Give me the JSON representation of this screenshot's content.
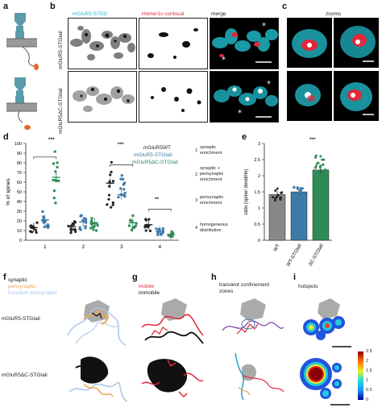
{
  "panels": {
    "a": "a",
    "b": "b",
    "c": "c",
    "d": "d",
    "e": "e",
    "f": "f",
    "g": "g",
    "h": "h",
    "i": "i"
  },
  "panel_b": {
    "col_sted": "mGluR5:STED",
    "col_homer": "Homer1c confocal",
    "col_merge": "merge",
    "row1": "mGluR5-STGtail",
    "row2": "mGluR5ΔC-STGtail"
  },
  "panel_c": {
    "title": "zooms"
  },
  "panel_d": {
    "sig1": "***",
    "sig2": "***",
    "sig3": "**",
    "legend": [
      "mGluR5WT",
      "mGluR5-STGtail",
      "mGluR5ΔC-STGtail"
    ],
    "categories_text": [
      {
        "num": "1",
        "text": "synaptic\nenrichment"
      },
      {
        "num": "2",
        "text": "synaptic +\nperisynaptic\nenrichment"
      },
      {
        "num": "3",
        "text": "perisynaptic\nenrichment"
      },
      {
        "num": "4",
        "text": "homogeneous\ndistribution"
      }
    ]
  },
  "panel_e": {
    "sig": "***"
  },
  "panel_f": {
    "legend_synaptic": "synaptic",
    "legend_perisynaptic": "perisynaptic",
    "legend_transient": "transient perisynaptic",
    "row1": "mGluR5-STGtail",
    "row2": "mGluR5ΔC-STGtail"
  },
  "panel_g": {
    "legend_mobile": "mobile",
    "legend_immobile": "immobile"
  },
  "panel_h": {
    "title": "transient confinement\nzones"
  },
  "panel_i": {
    "title": "hotspots",
    "colorbar_ticks": [
      "2.5",
      "2",
      "1.5",
      "1",
      "0.5",
      "0"
    ]
  },
  "colors": {
    "wt": "#222222",
    "stg": "#3d7aa8",
    "dc": "#2e8b57",
    "cyan": "#22d3d3",
    "red_homer": "#e0283a",
    "synaptic": "#111111",
    "perisynaptic": "#e8a857",
    "transient": "#a9c6e8",
    "mobile": "#e0283a",
    "immobile": "#111111",
    "tcz": "#7a3aa8"
  },
  "chart_data": [
    {
      "type": "scatter",
      "title": "",
      "xlabel": "",
      "ylabel": "% of spines",
      "ylim": [
        0,
        100
      ],
      "yticks": [
        0,
        10,
        20,
        30,
        40,
        50,
        60,
        70,
        80,
        90,
        100
      ],
      "categories": [
        "1",
        "2",
        "3",
        "4"
      ],
      "series": [
        {
          "name": "mGluR5WT",
          "means": [
            13,
            14,
            59,
            16
          ]
        },
        {
          "name": "mGluR5-STGtail",
          "means": [
            21,
            19,
            47,
            9
          ]
        },
        {
          "name": "mGluR5ΔC-STGtail",
          "means": [
            65,
            18,
            18,
            6
          ]
        }
      ],
      "legend": "right"
    },
    {
      "type": "bar",
      "title": "",
      "ylabel": "ratio (spine/ dendrite)",
      "ylim": [
        0,
        3
      ],
      "yticks": [
        0,
        0.5,
        1,
        1.5,
        2,
        2.5,
        3
      ],
      "categories": [
        "WT",
        "WT-STGtail",
        "ΔC-STGtail"
      ],
      "values": [
        1.42,
        1.5,
        2.18
      ]
    }
  ]
}
